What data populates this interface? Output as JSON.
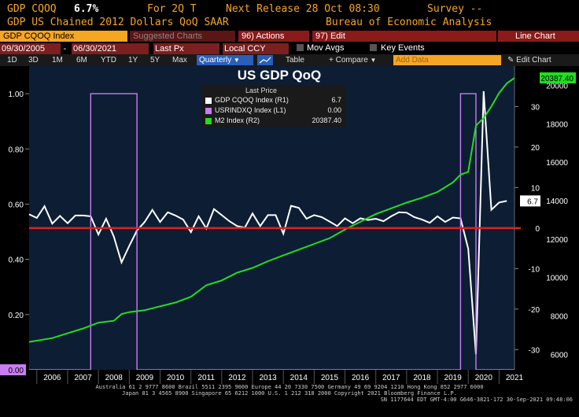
{
  "header": {
    "ticker": "GDP CQOQ",
    "value": "6.7%",
    "period": "For 2Q T",
    "next_release": "Next Release 28 Oct 08:30",
    "survey": "Survey --",
    "description": "GDP US Chained 2012 Dollars QoQ SAAR",
    "source": "Bureau of Economic Analysis"
  },
  "toolbar1": {
    "security": "GDP CQOQ Index",
    "suggested": "Suggested Charts",
    "actions": "96) Actions",
    "edit": "97) Edit",
    "chart_type": "Line Chart"
  },
  "toolbar2": {
    "start_date": "09/30/2005",
    "end_date": "06/30/2021",
    "price_field": "Last Px",
    "currency": "Local CCY",
    "mov_avgs": "Mov Avgs",
    "key_events": "Key Events"
  },
  "toolbar3": {
    "periods": [
      "1D",
      "3D",
      "1M",
      "6M",
      "YTD",
      "1Y",
      "5Y",
      "Max"
    ],
    "frequency": "Quarterly",
    "table": "Table",
    "compare": "Compare",
    "add_data": "Add Data",
    "edit_chart": "Edit Chart"
  },
  "legend": {
    "header": "Last Price",
    "items": [
      {
        "name": "GDP CQOQ Index (R1)",
        "value": "6.7",
        "color": "#ffffff"
      },
      {
        "name": "USRINDXQ Index (L1)",
        "value": "0.00",
        "color": "#c97df0"
      },
      {
        "name": "M2 Index (R2)",
        "value": "20387.40",
        "color": "#22dd22"
      }
    ]
  },
  "footer": {
    "line1": "Australia 61 2 9777 8600 Brazil 5511 2395 9000 Europe 44 20 7330 7500 Germany 49 69 9204 1210 Hong Kong 852 2977 6000",
    "line2": "Japan 81 3 4565 8900       Singapore 65 6212 1000       U.S. 1 212 318 2000       Copyright 2021 Bloomberg Finance L.P.",
    "line3": "SN 1177644 EDT GMT-4:00 G646-3821-172 30-Sep-2021 09:48:06"
  },
  "chart_data": {
    "type": "line",
    "title": "US GDP QoQ",
    "x_years": [
      "2006",
      "2007",
      "2008",
      "2009",
      "2010",
      "2011",
      "2012",
      "2013",
      "2014",
      "2015",
      "2016",
      "2017",
      "2018",
      "2019",
      "2020",
      "2021"
    ],
    "x_range": [
      2005.75,
      2021.5
    ],
    "left_axis": {
      "name": "USRINDXQ",
      "ticks": [
        "0.20",
        "0.40",
        "0.60",
        "0.80",
        "1.00"
      ],
      "ylim": [
        0,
        1.1
      ],
      "last_label": "0.00"
    },
    "right_axis1": {
      "name": "GDP QoQ",
      "ticks": [
        "30",
        "20",
        "10",
        "0",
        "-10",
        "-20",
        "-30"
      ],
      "ylim": [
        -35,
        40
      ],
      "last_label": "6.7"
    },
    "right_axis2": {
      "name": "M2",
      "ticks": [
        "20000",
        "18000",
        "16000",
        "14000",
        "12000",
        "10000",
        "8000",
        "6000"
      ],
      "ylim": [
        5200,
        21000
      ],
      "last_label": "20387.40"
    },
    "zero_line": 0,
    "series": [
      {
        "name": "GDP CQOQ Index",
        "axis": "right1",
        "color": "#ffffff",
        "x": [
          2005.75,
          2006.0,
          2006.25,
          2006.5,
          2006.75,
          2007.0,
          2007.25,
          2007.5,
          2007.75,
          2008.0,
          2008.25,
          2008.5,
          2008.75,
          2009.0,
          2009.25,
          2009.5,
          2009.75,
          2010.0,
          2010.25,
          2010.5,
          2010.75,
          2011.0,
          2011.25,
          2011.5,
          2011.75,
          2012.0,
          2012.25,
          2012.5,
          2012.75,
          2013.0,
          2013.25,
          2013.5,
          2013.75,
          2014.0,
          2014.25,
          2014.5,
          2014.75,
          2015.0,
          2015.25,
          2015.5,
          2015.75,
          2016.0,
          2016.25,
          2016.5,
          2016.75,
          2017.0,
          2017.25,
          2017.5,
          2017.75,
          2018.0,
          2018.25,
          2018.5,
          2018.75,
          2019.0,
          2019.25,
          2019.5,
          2019.75,
          2020.0,
          2020.25,
          2020.5,
          2020.75,
          2021.0,
          2021.25
        ],
        "values": [
          3.4,
          2.5,
          5.4,
          1.1,
          3.0,
          1.2,
          3.1,
          3.1,
          2.9,
          -1.6,
          2.3,
          -2.1,
          -8.5,
          -4.4,
          -0.6,
          1.5,
          4.5,
          1.5,
          3.9,
          3.1,
          2.1,
          -1.0,
          2.9,
          -0.1,
          4.7,
          3.2,
          1.7,
          0.5,
          0.1,
          3.6,
          0.5,
          3.2,
          3.2,
          -1.4,
          5.5,
          5.0,
          2.3,
          3.2,
          2.7,
          1.6,
          0.5,
          2.4,
          1.2,
          2.4,
          2.0,
          2.3,
          1.7,
          2.9,
          3.9,
          3.8,
          2.7,
          2.1,
          1.3,
          2.9,
          1.5,
          2.6,
          2.4,
          -5.1,
          -31.2,
          33.8,
          4.5,
          6.3,
          6.7
        ]
      },
      {
        "name": "USRINDXQ Index",
        "axis": "left",
        "color": "#c97df0",
        "x": [
          2005.75,
          2007.75,
          2007.75,
          2009.25,
          2009.25,
          2019.75,
          2019.75,
          2020.25,
          2020.25,
          2021.5
        ],
        "values": [
          0,
          0,
          1,
          1,
          0,
          0,
          1,
          1,
          0,
          0
        ]
      },
      {
        "name": "M2 Index",
        "axis": "right2",
        "color": "#22dd22",
        "x": [
          2005.75,
          2006.5,
          2007.0,
          2007.5,
          2008.0,
          2008.5,
          2008.75,
          2009.0,
          2009.5,
          2010.0,
          2010.5,
          2011.0,
          2011.5,
          2012.0,
          2012.5,
          2013.0,
          2013.5,
          2014.0,
          2014.5,
          2015.0,
          2015.5,
          2016.0,
          2016.5,
          2017.0,
          2017.5,
          2018.0,
          2018.5,
          2019.0,
          2019.5,
          2019.75,
          2020.0,
          2020.25,
          2020.5,
          2020.75,
          2021.0,
          2021.25,
          2021.5
        ],
        "values": [
          6650,
          6850,
          7100,
          7350,
          7650,
          7750,
          8100,
          8200,
          8300,
          8500,
          8700,
          9000,
          9600,
          9850,
          10250,
          10500,
          10850,
          11150,
          11450,
          11750,
          12050,
          12500,
          12900,
          13300,
          13600,
          13900,
          14150,
          14450,
          14950,
          15350,
          15500,
          17900,
          18300,
          18900,
          19600,
          20100,
          20387.4
        ]
      }
    ],
    "red_line_label": "0"
  }
}
